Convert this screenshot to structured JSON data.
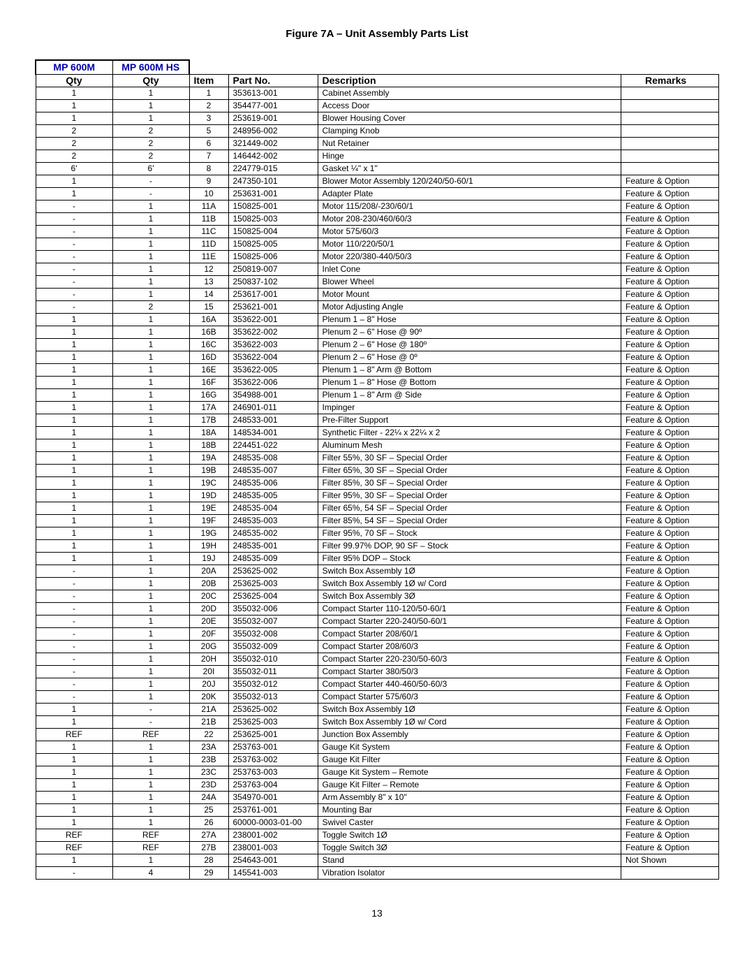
{
  "title": "Figure 7A – Unit Assembly Parts List",
  "pageNumber": "13",
  "columns": {
    "model1": "MP 600M",
    "model2": "MP 600M HS",
    "qty": "Qty",
    "item": "Item",
    "part": "Part No.",
    "desc": "Description",
    "remarks": "Remarks"
  },
  "strings": {
    "featureOption": "Feature & Option",
    "notShown": "Not Shown"
  },
  "rows": [
    {
      "q1": "1",
      "q2": "1",
      "item": "1",
      "part": "353613-001",
      "desc": "Cabinet Assembly",
      "rem": ""
    },
    {
      "q1": "1",
      "q2": "1",
      "item": "2",
      "part": "354477-001",
      "desc": "Access Door",
      "rem": ""
    },
    {
      "q1": "1",
      "q2": "1",
      "item": "3",
      "part": "253619-001",
      "desc": "Blower Housing Cover",
      "rem": ""
    },
    {
      "q1": "2",
      "q2": "2",
      "item": "5",
      "part": "248956-002",
      "desc": "Clamping Knob",
      "rem": ""
    },
    {
      "q1": "2",
      "q2": "2",
      "item": "6",
      "part": "321449-002",
      "desc": "Nut Retainer",
      "rem": ""
    },
    {
      "q1": "2",
      "q2": "2",
      "item": "7",
      "part": "146442-002",
      "desc": "Hinge",
      "rem": ""
    },
    {
      "q1": "6'",
      "q2": "6'",
      "item": "8",
      "part": "224779-015",
      "desc": "Gasket ¼\" x 1\"",
      "rem": ""
    },
    {
      "q1": "1",
      "q2": "-",
      "item": "9",
      "part": "247350-101",
      "desc": "Blower Motor Assembly 120/240/50-60/1",
      "rem": "Feature & Option"
    },
    {
      "q1": "1",
      "q2": "-",
      "item": "10",
      "part": "253631-001",
      "desc": "Adapter Plate",
      "rem": "Feature & Option"
    },
    {
      "q1": "-",
      "q2": "1",
      "item": "11A",
      "part": "150825-001",
      "desc": "Motor 115/208/-230/60/1",
      "rem": "Feature & Option"
    },
    {
      "q1": "-",
      "q2": "1",
      "item": "11B",
      "part": "150825-003",
      "desc": "Motor 208-230/460/60/3",
      "rem": "Feature & Option"
    },
    {
      "q1": "-",
      "q2": "1",
      "item": "11C",
      "part": "150825-004",
      "desc": "Motor 575/60/3",
      "rem": "Feature & Option"
    },
    {
      "q1": "-",
      "q2": "1",
      "item": "11D",
      "part": "150825-005",
      "desc": "Motor 110/220/50/1",
      "rem": "Feature & Option"
    },
    {
      "q1": "-",
      "q2": "1",
      "item": "11E",
      "part": "150825-006",
      "desc": "Motor 220/380-440/50/3",
      "rem": "Feature & Option"
    },
    {
      "q1": "-",
      "q2": "1",
      "item": "12",
      "part": "250819-007",
      "desc": "Inlet Cone",
      "rem": "Feature & Option"
    },
    {
      "q1": "-",
      "q2": "1",
      "item": "13",
      "part": "250837-102",
      "desc": "Blower Wheel",
      "rem": "Feature & Option"
    },
    {
      "q1": "-",
      "q2": "1",
      "item": "14",
      "part": "253617-001",
      "desc": "Motor Mount",
      "rem": "Feature & Option"
    },
    {
      "q1": "-",
      "q2": "2",
      "item": "15",
      "part": "253621-001",
      "desc": "Motor Adjusting Angle",
      "rem": "Feature & Option"
    },
    {
      "q1": "1",
      "q2": "1",
      "item": "16A",
      "part": "353622-001",
      "desc": "Plenum 1 – 8\" Hose",
      "rem": "Feature & Option"
    },
    {
      "q1": "1",
      "q2": "1",
      "item": "16B",
      "part": "353622-002",
      "desc": "Plenum 2 – 6\" Hose @ 90º",
      "rem": "Feature & Option"
    },
    {
      "q1": "1",
      "q2": "1",
      "item": "16C",
      "part": "353622-003",
      "desc": "Plenum 2 – 6\" Hose @ 180º",
      "rem": "Feature & Option"
    },
    {
      "q1": "1",
      "q2": "1",
      "item": "16D",
      "part": "353622-004",
      "desc": "Plenum 2 – 6\" Hose @ 0º",
      "rem": "Feature & Option"
    },
    {
      "q1": "1",
      "q2": "1",
      "item": "16E",
      "part": "353622-005",
      "desc": "Plenum 1 – 8\" Arm @ Bottom",
      "rem": "Feature & Option"
    },
    {
      "q1": "1",
      "q2": "1",
      "item": "16F",
      "part": "353622-006",
      "desc": "Plenum 1 – 8\" Hose @ Bottom",
      "rem": "Feature & Option"
    },
    {
      "q1": "1",
      "q2": "1",
      "item": "16G",
      "part": "354988-001",
      "desc": "Plenum 1 – 8\" Arm @ Side",
      "rem": "Feature & Option"
    },
    {
      "q1": "1",
      "q2": "1",
      "item": "17A",
      "part": "246901-011",
      "desc": "Impinger",
      "rem": "Feature & Option"
    },
    {
      "q1": "1",
      "q2": "1",
      "item": "17B",
      "part": "248533-001",
      "desc": "Pre-Filter Support",
      "rem": "Feature & Option"
    },
    {
      "q1": "1",
      "q2": "1",
      "item": "18A",
      "part": "148534-001",
      "desc": "Synthetic Filter - 22¼ x 22¼ x 2",
      "rem": "Feature & Option"
    },
    {
      "q1": "1",
      "q2": "1",
      "item": "18B",
      "part": "224451-022",
      "desc": "Aluminum Mesh",
      "rem": "Feature & Option"
    },
    {
      "q1": "1",
      "q2": "1",
      "item": "19A",
      "part": "248535-008",
      "desc": "Filter 55%, 30 SF – Special Order",
      "rem": "Feature & Option"
    },
    {
      "q1": "1",
      "q2": "1",
      "item": "19B",
      "part": "248535-007",
      "desc": "Filter 65%, 30 SF – Special Order",
      "rem": "Feature & Option"
    },
    {
      "q1": "1",
      "q2": "1",
      "item": "19C",
      "part": "248535-006",
      "desc": "Filter 85%, 30 SF – Special Order",
      "rem": "Feature & Option"
    },
    {
      "q1": "1",
      "q2": "1",
      "item": "19D",
      "part": "248535-005",
      "desc": "Filter 95%, 30 SF – Special Order",
      "rem": "Feature & Option"
    },
    {
      "q1": "1",
      "q2": "1",
      "item": "19E",
      "part": "248535-004",
      "desc": "Filter 65%, 54 SF – Special Order",
      "rem": "Feature & Option"
    },
    {
      "q1": "1",
      "q2": "1",
      "item": "19F",
      "part": "248535-003",
      "desc": "Filter 85%, 54 SF – Special Order",
      "rem": "Feature & Option"
    },
    {
      "q1": "1",
      "q2": "1",
      "item": "19G",
      "part": "248535-002",
      "desc": "Filter 95%, 70 SF – Stock",
      "rem": "Feature & Option"
    },
    {
      "q1": "1",
      "q2": "1",
      "item": "19H",
      "part": "248535-001",
      "desc": "Filter 99.97% DOP, 90 SF – Stock",
      "rem": "Feature & Option"
    },
    {
      "q1": "1",
      "q2": "1",
      "item": "19J",
      "part": "248535-009",
      "desc": "Filter 95% DOP – Stock",
      "rem": "Feature & Option"
    },
    {
      "q1": "-",
      "q2": "1",
      "item": "20A",
      "part": "253625-002",
      "desc": "Switch Box Assembly 1Ø",
      "rem": "Feature & Option"
    },
    {
      "q1": "-",
      "q2": "1",
      "item": "20B",
      "part": "253625-003",
      "desc": "Switch Box Assembly 1Ø w/ Cord",
      "rem": "Feature & Option"
    },
    {
      "q1": "-",
      "q2": "1",
      "item": "20C",
      "part": "253625-004",
      "desc": "Switch Box Assembly 3Ø",
      "rem": "Feature & Option"
    },
    {
      "q1": "-",
      "q2": "1",
      "item": "20D",
      "part": "355032-006",
      "desc": "Compact Starter 110-120/50-60/1",
      "rem": "Feature & Option"
    },
    {
      "q1": "-",
      "q2": "1",
      "item": "20E",
      "part": "355032-007",
      "desc": "Compact Starter 220-240/50-60/1",
      "rem": "Feature & Option"
    },
    {
      "q1": "-",
      "q2": "1",
      "item": "20F",
      "part": "355032-008",
      "desc": "Compact Starter 208/60/1",
      "rem": "Feature & Option"
    },
    {
      "q1": "-",
      "q2": "1",
      "item": "20G",
      "part": "355032-009",
      "desc": "Compact Starter 208/60/3",
      "rem": "Feature & Option"
    },
    {
      "q1": "-",
      "q2": "1",
      "item": "20H",
      "part": "355032-010",
      "desc": "Compact Starter 220-230/50-60/3",
      "rem": "Feature & Option"
    },
    {
      "q1": "-",
      "q2": "1",
      "item": "20I",
      "part": "355032-011",
      "desc": "Compact Starter 380/50/3",
      "rem": "Feature & Option"
    },
    {
      "q1": "-",
      "q2": "1",
      "item": "20J",
      "part": "355032-012",
      "desc": "Compact Starter 440-460/50-60/3",
      "rem": "Feature & Option"
    },
    {
      "q1": "-",
      "q2": "1",
      "item": "20K",
      "part": "355032-013",
      "desc": "Compact Starter 575/60/3",
      "rem": "Feature & Option"
    },
    {
      "q1": "1",
      "q2": "-",
      "item": "21A",
      "part": "253625-002",
      "desc": "Switch Box Assembly 1Ø",
      "rem": "Feature & Option"
    },
    {
      "q1": "1",
      "q2": "-",
      "item": "21B",
      "part": "253625-003",
      "desc": "Switch Box Assembly 1Ø w/ Cord",
      "rem": "Feature & Option"
    },
    {
      "q1": "REF",
      "q2": "REF",
      "item": "22",
      "part": "253625-001",
      "desc": "Junction Box Assembly",
      "rem": "Feature & Option"
    },
    {
      "q1": "1",
      "q2": "1",
      "item": "23A",
      "part": "253763-001",
      "desc": "Gauge Kit System",
      "rem": "Feature & Option"
    },
    {
      "q1": "1",
      "q2": "1",
      "item": "23B",
      "part": "253763-002",
      "desc": "Gauge Kit Filter",
      "rem": "Feature & Option"
    },
    {
      "q1": "1",
      "q2": "1",
      "item": "23C",
      "part": "253763-003",
      "desc": "Gauge Kit System – Remote",
      "rem": "Feature & Option"
    },
    {
      "q1": "1",
      "q2": "1",
      "item": "23D",
      "part": "253763-004",
      "desc": "Gauge Kit Filter – Remote",
      "rem": "Feature & Option"
    },
    {
      "q1": "1",
      "q2": "1",
      "item": "24A",
      "part": "354970-001",
      "desc": "Arm Assembly 8\" x 10\"",
      "rem": "Feature & Option"
    },
    {
      "q1": "1",
      "q2": "1",
      "item": "25",
      "part": "253761-001",
      "desc": "Mounting Bar",
      "rem": "Feature & Option"
    },
    {
      "q1": "1",
      "q2": "1",
      "item": "26",
      "part": "60000-0003-01-00",
      "desc": "Swivel Caster",
      "rem": "Feature & Option"
    },
    {
      "q1": "REF",
      "q2": "REF",
      "item": "27A",
      "part": "238001-002",
      "desc": "Toggle Switch 1Ø",
      "rem": "Feature & Option"
    },
    {
      "q1": "REF",
      "q2": "REF",
      "item": "27B",
      "part": "238001-003",
      "desc": "Toggle Switch 3Ø",
      "rem": "Feature & Option"
    },
    {
      "q1": "1",
      "q2": "1",
      "item": "28",
      "part": "254643-001",
      "desc": "Stand",
      "rem": "Not Shown"
    },
    {
      "q1": "-",
      "q2": "4",
      "item": "29",
      "part": "145541-003",
      "desc": "Vibration Isolator",
      "rem": ""
    }
  ]
}
